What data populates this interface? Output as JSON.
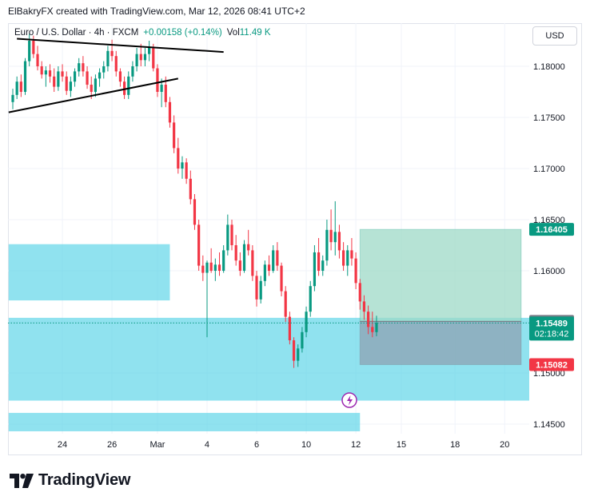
{
  "credit": "ElBakryFX created with TradingView.com, Mar 12, 2026 08:41 UTC+2",
  "legend": {
    "symbol": "Euro / U.S. Dollar · 4h · FXCM",
    "change": "+0.00158 (+0.14%)",
    "vol_label": "Vol",
    "vol_value": "11.49 K"
  },
  "currency_button": "USD",
  "brand": "TradingView",
  "colors": {
    "up": "#089981",
    "down": "#f23645",
    "zone": "#55d2e6",
    "target": "#9ed9c7",
    "stop": "#8e93a3",
    "last_price": "#089981"
  },
  "chart_data": {
    "type": "candlestick",
    "symbol": "EURUSD",
    "timeframe": "4h",
    "ylim": [
      1.1425,
      1.1835
    ],
    "y_ticks": [
      1.18,
      1.175,
      1.17,
      1.165,
      1.16,
      1.155,
      1.15,
      1.145
    ],
    "y_tick_labels": [
      "1.18000",
      "1.17500",
      "1.17000",
      "1.16500",
      "1.16000",
      "1.15500",
      "1.15000",
      "1.14500"
    ],
    "x_ticks": [
      {
        "label": "24",
        "index": 12
      },
      {
        "label": "26",
        "index": 24
      },
      {
        "label": "Mar",
        "index": 35
      },
      {
        "label": "4",
        "index": 47
      },
      {
        "label": "6",
        "index": 59
      },
      {
        "label": "10",
        "index": 71
      },
      {
        "label": "12",
        "index": 83
      },
      {
        "label": "15",
        "index": 94
      },
      {
        "label": "18",
        "index": 107
      },
      {
        "label": "20",
        "index": 119
      }
    ],
    "candles": [
      [
        1.1765,
        1.1778,
        1.1758,
        1.1772
      ],
      [
        1.1772,
        1.179,
        1.1768,
        1.1785
      ],
      [
        1.1785,
        1.1792,
        1.177,
        1.1775
      ],
      [
        1.1775,
        1.1808,
        1.1772,
        1.1805
      ],
      [
        1.1805,
        1.1832,
        1.18,
        1.1825
      ],
      [
        1.1825,
        1.183,
        1.1808,
        1.1812
      ],
      [
        1.1812,
        1.182,
        1.1796,
        1.18
      ],
      [
        1.18,
        1.1805,
        1.1788,
        1.1792
      ],
      [
        1.1792,
        1.18,
        1.178,
        1.1796
      ],
      [
        1.1796,
        1.1802,
        1.1784,
        1.179
      ],
      [
        1.179,
        1.1798,
        1.1775,
        1.178
      ],
      [
        1.178,
        1.18,
        1.1776,
        1.1795
      ],
      [
        1.1795,
        1.1802,
        1.1785,
        1.179
      ],
      [
        1.179,
        1.1795,
        1.1772,
        1.1776
      ],
      [
        1.1776,
        1.179,
        1.177,
        1.1785
      ],
      [
        1.1785,
        1.1798,
        1.178,
        1.1795
      ],
      [
        1.1795,
        1.1808,
        1.179,
        1.1803
      ],
      [
        1.1803,
        1.181,
        1.179,
        1.1795
      ],
      [
        1.1795,
        1.18,
        1.1778,
        1.1782
      ],
      [
        1.1782,
        1.179,
        1.1768,
        1.1775
      ],
      [
        1.1775,
        1.1792,
        1.177,
        1.1788
      ],
      [
        1.1788,
        1.1798,
        1.178,
        1.1794
      ],
      [
        1.1794,
        1.1805,
        1.1788,
        1.18
      ],
      [
        1.18,
        1.182,
        1.1795,
        1.1815
      ],
      [
        1.1815,
        1.1826,
        1.1805,
        1.181
      ],
      [
        1.181,
        1.1815,
        1.179,
        1.1795
      ],
      [
        1.1795,
        1.1798,
        1.178,
        1.1785
      ],
      [
        1.1785,
        1.179,
        1.1768,
        1.1772
      ],
      [
        1.1772,
        1.1795,
        1.1768,
        1.179
      ],
      [
        1.179,
        1.1805,
        1.1785,
        1.18
      ],
      [
        1.18,
        1.1818,
        1.1795,
        1.1812
      ],
      [
        1.1812,
        1.1822,
        1.18,
        1.1806
      ],
      [
        1.1806,
        1.1818,
        1.18,
        1.1812
      ],
      [
        1.1812,
        1.1825,
        1.1805,
        1.1818
      ],
      [
        1.1818,
        1.1822,
        1.1795,
        1.1798
      ],
      [
        1.1798,
        1.1802,
        1.177,
        1.1775
      ],
      [
        1.1775,
        1.1788,
        1.176,
        1.1782
      ],
      [
        1.1782,
        1.179,
        1.176,
        1.1765
      ],
      [
        1.1765,
        1.177,
        1.174,
        1.1745
      ],
      [
        1.1745,
        1.1752,
        1.1715,
        1.172
      ],
      [
        1.172,
        1.173,
        1.1695,
        1.17
      ],
      [
        1.17,
        1.1712,
        1.169,
        1.1706
      ],
      [
        1.1706,
        1.171,
        1.1685,
        1.169
      ],
      [
        1.169,
        1.1698,
        1.1665,
        1.167
      ],
      [
        1.167,
        1.1675,
        1.164,
        1.1645
      ],
      [
        1.1645,
        1.165,
        1.16,
        1.1605
      ],
      [
        1.1605,
        1.1615,
        1.159,
        1.1598
      ],
      [
        1.1598,
        1.161,
        1.1535,
        1.1608
      ],
      [
        1.1608,
        1.1622,
        1.1598,
        1.16
      ],
      [
        1.16,
        1.1612,
        1.159,
        1.1606
      ],
      [
        1.1606,
        1.1618,
        1.1595,
        1.16
      ],
      [
        1.16,
        1.1625,
        1.1598,
        1.162
      ],
      [
        1.162,
        1.1655,
        1.1615,
        1.1645
      ],
      [
        1.1645,
        1.165,
        1.162,
        1.1625
      ],
      [
        1.1625,
        1.1635,
        1.1605,
        1.161
      ],
      [
        1.161,
        1.1618,
        1.1595,
        1.16
      ],
      [
        1.16,
        1.163,
        1.1598,
        1.1626
      ],
      [
        1.1626,
        1.164,
        1.1615,
        1.162
      ],
      [
        1.162,
        1.1625,
        1.159,
        1.1595
      ],
      [
        1.1595,
        1.16,
        1.1565,
        1.1572
      ],
      [
        1.1572,
        1.1595,
        1.1568,
        1.159
      ],
      [
        1.159,
        1.161,
        1.1585,
        1.1606
      ],
      [
        1.1606,
        1.1615,
        1.1595,
        1.16
      ],
      [
        1.16,
        1.1625,
        1.1598,
        1.162
      ],
      [
        1.162,
        1.1628,
        1.16,
        1.1605
      ],
      [
        1.1605,
        1.1608,
        1.1575,
        1.158
      ],
      [
        1.158,
        1.1585,
        1.155,
        1.1555
      ],
      [
        1.1555,
        1.156,
        1.1528,
        1.1532
      ],
      [
        1.1532,
        1.1535,
        1.1505,
        1.1512
      ],
      [
        1.1512,
        1.1528,
        1.1506,
        1.1524
      ],
      [
        1.1524,
        1.1545,
        1.152,
        1.154
      ],
      [
        1.154,
        1.1565,
        1.1535,
        1.156
      ],
      [
        1.156,
        1.159,
        1.1555,
        1.1585
      ],
      [
        1.1585,
        1.1625,
        1.158,
        1.1618
      ],
      [
        1.1618,
        1.1632,
        1.1595,
        1.16
      ],
      [
        1.16,
        1.1615,
        1.1595,
        1.161
      ],
      [
        1.161,
        1.165,
        1.1605,
        1.164
      ],
      [
        1.164,
        1.166,
        1.162,
        1.1628
      ],
      [
        1.1628,
        1.1668,
        1.1615,
        1.1638
      ],
      [
        1.1638,
        1.1645,
        1.1612,
        1.162
      ],
      [
        1.162,
        1.1628,
        1.16,
        1.1605
      ],
      [
        1.1605,
        1.1625,
        1.1595,
        1.162
      ],
      [
        1.162,
        1.1632,
        1.1605,
        1.1612
      ],
      [
        1.1612,
        1.1618,
        1.1582,
        1.1588
      ],
      [
        1.1588,
        1.1592,
        1.1562,
        1.157
      ],
      [
        1.157,
        1.1576,
        1.1552,
        1.156
      ],
      [
        1.156,
        1.1566,
        1.1538,
        1.1545
      ],
      [
        1.1545,
        1.156,
        1.1535,
        1.154
      ],
      [
        1.154,
        1.1556,
        1.1536,
        1.1549
      ]
    ],
    "zones": [
      {
        "y_top": 1.1626,
        "y_bottom": 1.1571,
        "x_from_index": -1,
        "x_to_index": 38
      },
      {
        "y_top": 1.1554,
        "y_bottom": 1.1473,
        "x_from_index": -1,
        "x_to_index": 134
      },
      {
        "y_top": 1.1461,
        "y_bottom": 1.1443,
        "x_from_index": -1,
        "x_to_index": 84
      }
    ],
    "position": {
      "entry": 1.15505,
      "target": 1.16405,
      "stop": 1.15082,
      "x_from_index": 84,
      "x_to_index": 123
    },
    "trend_lines": [
      {
        "from": [
          1,
          1.1827
        ],
        "to": [
          51,
          1.1814
        ]
      },
      {
        "from": [
          -1,
          1.1755
        ],
        "to": [
          40,
          1.1788
        ]
      }
    ],
    "last_price": 1.15489,
    "price_badges": [
      {
        "value": "1.16405",
        "price": 1.16405,
        "color": "#089981"
      },
      {
        "value": "1.15505",
        "price": 1.15505,
        "color": "#787b86"
      },
      {
        "value": "1.15489",
        "price": 1.15489,
        "color": "#089981",
        "sub": "02:18:42"
      },
      {
        "value": "1.15082",
        "price": 1.15082,
        "color": "#f23645"
      }
    ]
  }
}
